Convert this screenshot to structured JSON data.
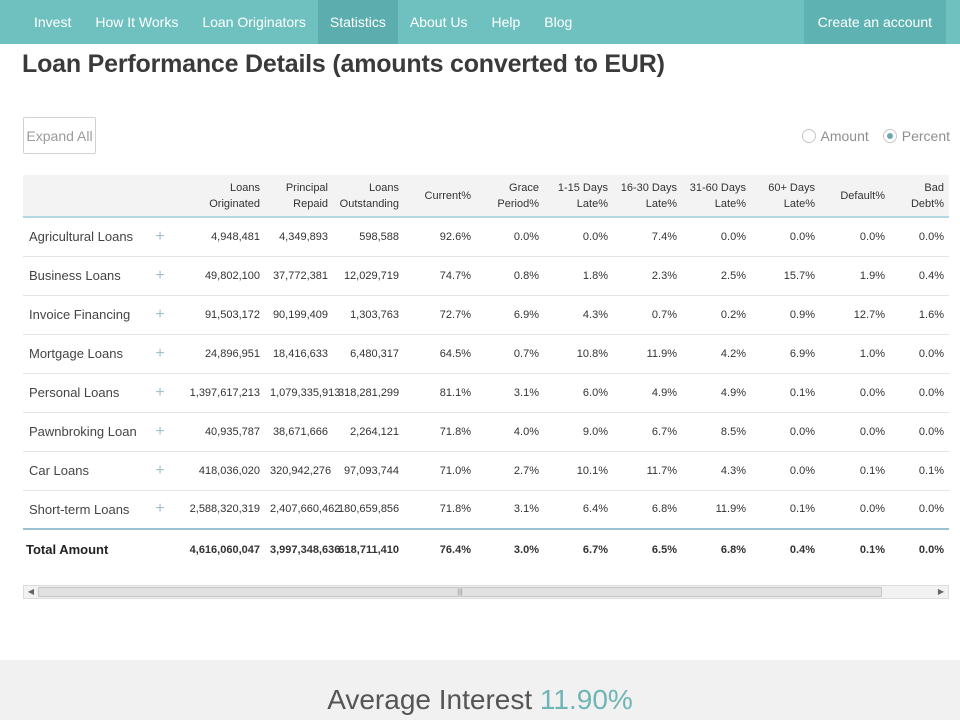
{
  "nav": {
    "items": [
      {
        "label": "Invest",
        "active": false
      },
      {
        "label": "How It Works",
        "active": false
      },
      {
        "label": "Loan Originators",
        "active": false
      },
      {
        "label": "Statistics",
        "active": true
      },
      {
        "label": "About Us",
        "active": false
      },
      {
        "label": "Help",
        "active": false
      },
      {
        "label": "Blog",
        "active": false
      }
    ],
    "cta_label": "Create an account"
  },
  "page": {
    "title": "Loan Performance Details (amounts converted to EUR)",
    "expand_label": "Expand All",
    "display_options": [
      {
        "label": "Amount",
        "selected": false
      },
      {
        "label": "Percent",
        "selected": true
      }
    ]
  },
  "table": {
    "headers": [
      "",
      "",
      "Loans\nOriginated",
      "Principal\nRepaid",
      "Loans\nOutstanding",
      "Current%",
      "Grace\nPeriod%",
      "1-15 Days\nLate%",
      "16-30 Days\nLate%",
      "31-60 Days\nLate%",
      "60+ Days\nLate%",
      "Default%",
      "Bad Debt%"
    ],
    "rows": [
      {
        "name": "Agricultural Loans",
        "cells": [
          "4,948,481",
          "4,349,893",
          "598,588",
          "92.6%",
          "0.0%",
          "0.0%",
          "7.4%",
          "0.0%",
          "0.0%",
          "0.0%",
          "0.0%"
        ]
      },
      {
        "name": "Business Loans",
        "cells": [
          "49,802,100",
          "37,772,381",
          "12,029,719",
          "74.7%",
          "0.8%",
          "1.8%",
          "2.3%",
          "2.5%",
          "15.7%",
          "1.9%",
          "0.4%"
        ]
      },
      {
        "name": "Invoice Financing",
        "cells": [
          "91,503,172",
          "90,199,409",
          "1,303,763",
          "72.7%",
          "6.9%",
          "4.3%",
          "0.7%",
          "0.2%",
          "0.9%",
          "12.7%",
          "1.6%"
        ]
      },
      {
        "name": "Mortgage Loans",
        "cells": [
          "24,896,951",
          "18,416,633",
          "6,480,317",
          "64.5%",
          "0.7%",
          "10.8%",
          "11.9%",
          "4.2%",
          "6.9%",
          "1.0%",
          "0.0%"
        ]
      },
      {
        "name": "Personal Loans",
        "cells": [
          "1,397,617,213",
          "1,079,335,913",
          "318,281,299",
          "81.1%",
          "3.1%",
          "6.0%",
          "4.9%",
          "4.9%",
          "0.1%",
          "0.0%",
          "0.0%"
        ]
      },
      {
        "name": "Pawnbroking Loan",
        "cells": [
          "40,935,787",
          "38,671,666",
          "2,264,121",
          "71.8%",
          "4.0%",
          "9.0%",
          "6.7%",
          "8.5%",
          "0.0%",
          "0.0%",
          "0.0%"
        ]
      },
      {
        "name": "Car Loans",
        "cells": [
          "418,036,020",
          "320,942,276",
          "97,093,744",
          "71.0%",
          "2.7%",
          "10.1%",
          "11.7%",
          "4.3%",
          "0.0%",
          "0.1%",
          "0.1%"
        ]
      },
      {
        "name": "Short-term Loans",
        "cells": [
          "2,588,320,319",
          "2,407,660,462",
          "180,659,856",
          "71.8%",
          "3.1%",
          "6.4%",
          "6.8%",
          "11.9%",
          "0.1%",
          "0.0%",
          "0.0%"
        ]
      }
    ],
    "expand_symbol": "+",
    "total": {
      "name": "Total Amount",
      "cells": [
        "4,616,060,047",
        "3,997,348,636",
        "618,711,410",
        "76.4%",
        "3.0%",
        "6.7%",
        "6.5%",
        "6.8%",
        "0.4%",
        "0.1%",
        "0.0%"
      ]
    }
  },
  "footer": {
    "interest_label": "Average Interest",
    "interest_value": "11.90%"
  },
  "colors": {
    "nav_bg": "#6fc1c0",
    "accent": "#6fb5b5"
  }
}
